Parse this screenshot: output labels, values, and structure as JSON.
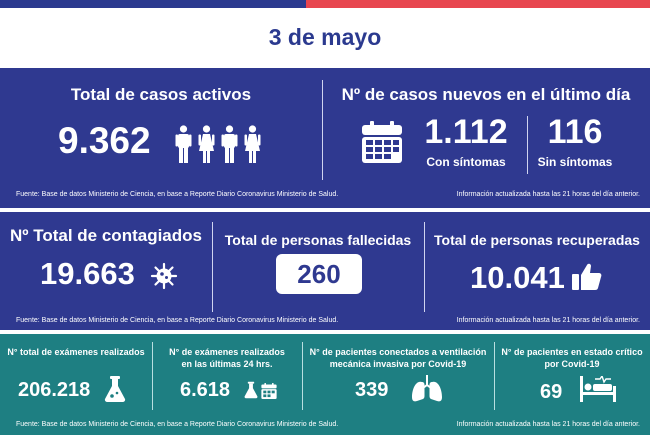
{
  "date": "3 de mayo",
  "colors": {
    "navy": "#2f3990",
    "teal": "#1e7f82",
    "flag_blue": "#2b3a8f",
    "flag_red": "#e8464f"
  },
  "panel1": {
    "active_title": "Total de casos activos",
    "active_value": "9.362",
    "new_title": "Nº de casos nuevos en el último día",
    "with_symptoms_value": "1.112",
    "with_symptoms_label": "Con síntomas",
    "without_symptoms_value": "116",
    "without_symptoms_label": "Sin síntomas",
    "source": "Fuente: Base de datos Ministerio de Ciencia, en base a Reporte Diario Coronavirus Ministerio de Salud.",
    "updated": "Información actualizada hasta las 21 horas  del día anterior."
  },
  "panel2": {
    "infected_title": "Nº Total de contagiados",
    "infected_value": "19.663",
    "deaths_title": "Total de personas fallecidas",
    "deaths_value": "260",
    "recovered_title": "Total de personas recuperadas",
    "recovered_value": "10.041",
    "source": "Fuente: Base de datos Ministerio de Ciencia, en base a Reporte Diario Coronavirus Ministerio de Salud.",
    "updated": "Información actualizada hasta las 21 horas  del día anterior."
  },
  "panel3": {
    "exams_title": "N° total de exámenes realizados",
    "exams_value": "206.218",
    "exams24_title_1": "N° de exámenes realizados",
    "exams24_title_2": "en las últimas 24 hrs.",
    "exams24_value": "6.618",
    "ventilation_title_1": "N° de pacientes conectados a ventilación",
    "ventilation_title_2": "mecánica invasiva por Covid-19",
    "ventilation_value": "339",
    "critical_title_1": "N° de pacientes en estado crítico",
    "critical_title_2": "por Covid-19",
    "critical_value": "69",
    "source": "Fuente: Base de datos Ministerio de Ciencia, en base a Reporte Diario Coronavirus Ministerio de Salud.",
    "updated": "Información actualizada hasta las 21 horas  del día anterior."
  }
}
